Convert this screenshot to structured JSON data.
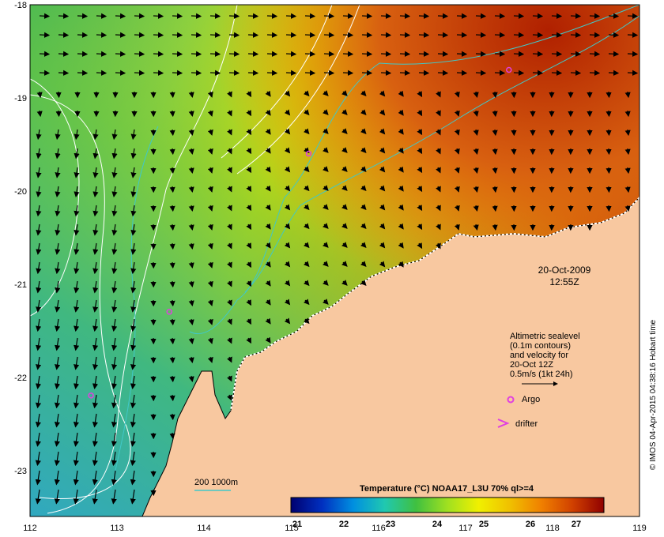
{
  "map": {
    "lon_ticks": [
      "112",
      "113",
      "114",
      "115",
      "116",
      "117",
      "118",
      "119"
    ],
    "lat_ticks": [
      "-18",
      "-19",
      "-20",
      "-21",
      "-22",
      "-23"
    ],
    "lon_range": [
      112,
      119
    ],
    "lat_range": [
      -23.5,
      -18
    ]
  },
  "timestamp": {
    "date": "20-Oct-2009",
    "time": "12:55Z"
  },
  "legend": {
    "lines": [
      "Altimetric sealevel",
      "(0.1m contours)",
      "and velocity for",
      "20-Oct 12Z",
      "0.5m/s (1kt 24h)"
    ],
    "argo_label": "Argo",
    "drifter_label": "drifter",
    "argo_color": "#e040e0",
    "drifter_color": "#e040e0"
  },
  "depth_key": {
    "label": "200  1000m",
    "color": "#40c8c8"
  },
  "colorbar": {
    "title": "Temperature (°C) NOAA17_L3U 70% ql>=4",
    "ticks": [
      "21",
      "22",
      "23",
      "24",
      "25",
      "26",
      "27"
    ],
    "colors": [
      "#000070",
      "#0030c0",
      "#0090e0",
      "#20c8b0",
      "#40c040",
      "#a0e020",
      "#f0f000",
      "#f0c000",
      "#f08000",
      "#d04000",
      "#900000"
    ]
  },
  "credit": "© IMOS 04-Apr-2015 04:38:16 Hobart time",
  "land_color": "#f8c8a0",
  "argo_floats": [
    {
      "lon": 117.5,
      "lat": -18.7
    },
    {
      "lon": 115.2,
      "lat": -19.6
    },
    {
      "lon": 113.6,
      "lat": -21.3
    },
    {
      "lon": 112.7,
      "lat": -22.2
    }
  ]
}
